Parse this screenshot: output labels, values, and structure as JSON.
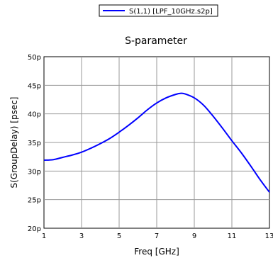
{
  "chart_data": {
    "type": "line",
    "title": "S-parameter",
    "xlabel": "Freq [GHz]",
    "ylabel": "S(GroupDelay) [psec]",
    "xlim": [
      1,
      13
    ],
    "ylim": [
      20,
      50
    ],
    "grid": true,
    "legend_position": "top",
    "x_ticks": [
      1,
      3,
      5,
      7,
      9,
      11,
      13
    ],
    "x_tick_labels": [
      "1",
      "3",
      "5",
      "7",
      "9",
      "11",
      "13"
    ],
    "y_ticks": [
      20,
      25,
      30,
      35,
      40,
      45,
      50
    ],
    "y_tick_labels": [
      "20p",
      "25p",
      "30p",
      "35p",
      "40p",
      "45p",
      "50p"
    ],
    "series": [
      {
        "name": "S(1,1) [LPF_10GHz.s2p]",
        "color": "#0000ff",
        "x": [
          1,
          1.5,
          2,
          2.5,
          3,
          3.5,
          4,
          4.5,
          5,
          5.5,
          6,
          6.5,
          7,
          7.5,
          8,
          8.3,
          8.5,
          9,
          9.5,
          10,
          10.5,
          11,
          11.5,
          12,
          12.5,
          13
        ],
        "y": [
          31.9,
          32.0,
          32.4,
          32.8,
          33.3,
          34.0,
          34.8,
          35.7,
          36.8,
          38.0,
          39.3,
          40.7,
          41.9,
          42.8,
          43.4,
          43.6,
          43.5,
          42.8,
          41.5,
          39.6,
          37.5,
          35.3,
          33.2,
          30.9,
          28.5,
          26.3
        ]
      }
    ]
  }
}
